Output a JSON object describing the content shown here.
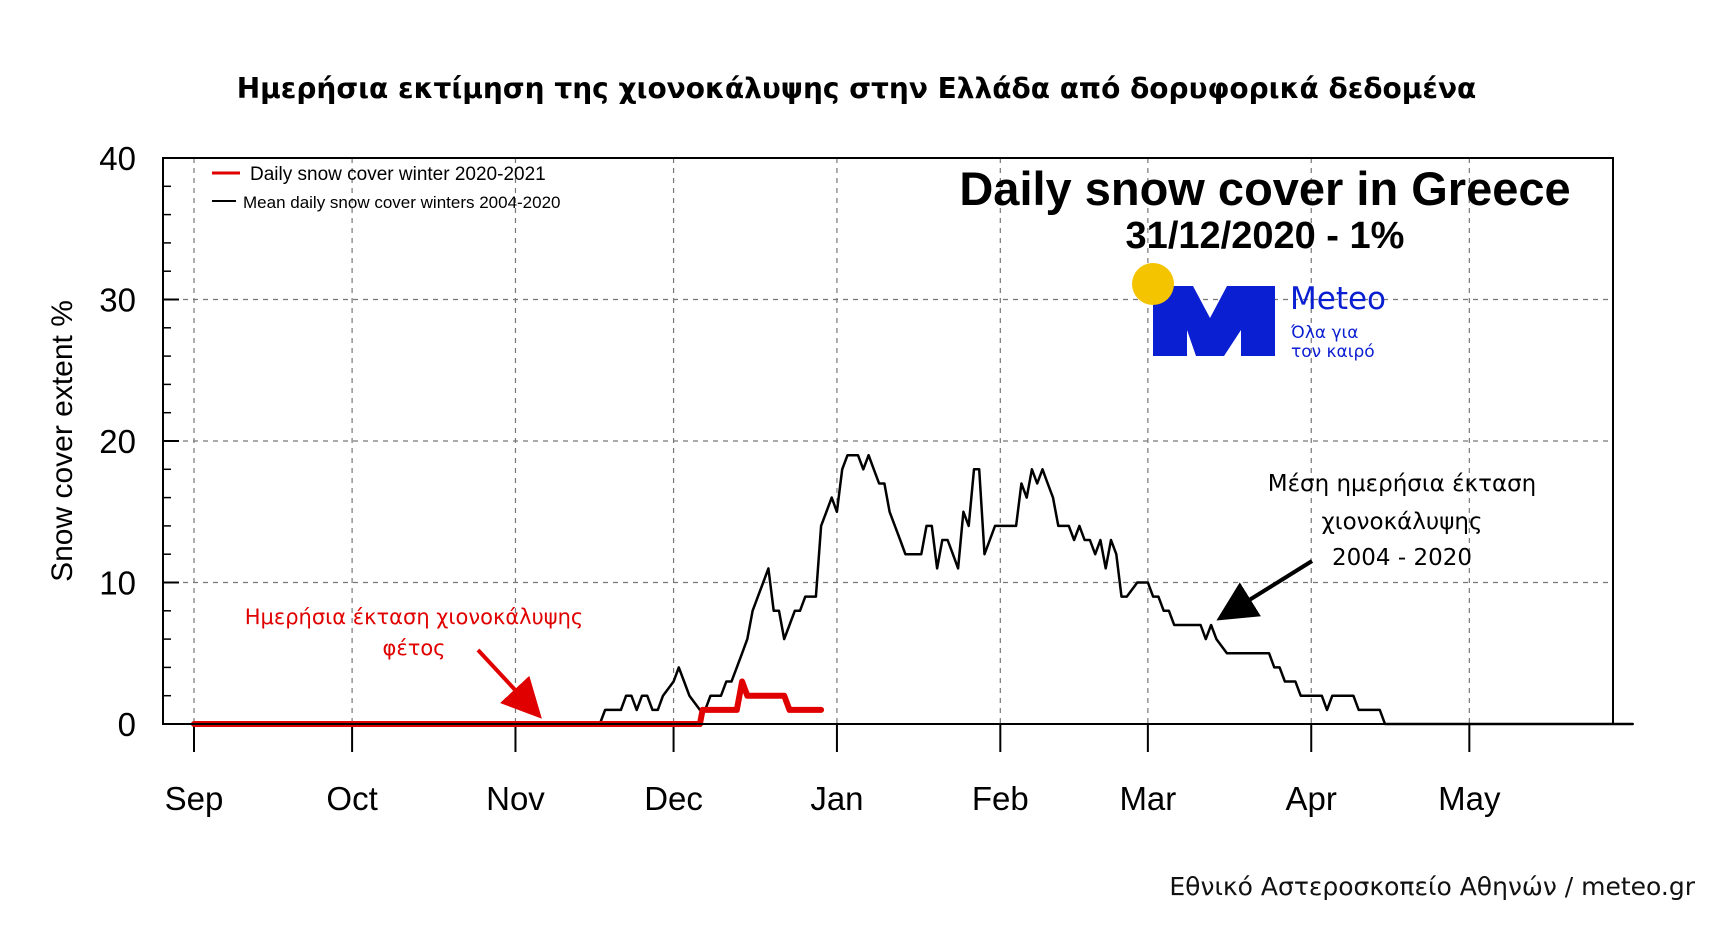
{
  "header": {
    "title": "Ημερήσια εκτίμηση της χιονοκάλυψης στην Ελλάδα από δορυφορικά δεδομένα"
  },
  "footer": {
    "credit": "Εθνικό Αστεροσκοπείο Αθηνών / meteo.gr"
  },
  "logo": {
    "brand": "Meteo",
    "tagline_line1": "Όλα για",
    "tagline_line2": "τον καιρό"
  },
  "colors": {
    "current": "#e00000",
    "mean": "#000000",
    "logo_blue": "#0a1ed2",
    "logo_sun": "#f5c400",
    "annotation_red": "#e00000"
  },
  "chart_data": {
    "type": "line",
    "title": "Daily snow cover in Greece",
    "subtitle": "31/12/2020 - 1%",
    "xlabel": "",
    "ylabel": "Snow cover extent %",
    "ylim": [
      0,
      40
    ],
    "xlim": [
      0,
      273
    ],
    "grid": true,
    "y_ticks": [
      "0",
      "10",
      "20",
      "30",
      "40"
    ],
    "y_tick_values": [
      0,
      10,
      20,
      30,
      40
    ],
    "month_labels": [
      "Sep",
      "Oct",
      "Nov",
      "Dec",
      "Jan",
      "Feb",
      "Mar",
      "Apr",
      "May"
    ],
    "month_days": [
      0,
      30,
      61,
      91,
      122,
      153,
      181,
      212,
      242
    ],
    "legend": {
      "position": "top-left",
      "current_label": "Daily snow cover winter 2020-2021",
      "mean_label": "Mean daily snow cover winters 2004-2020"
    },
    "annotations": {
      "current_line1": "Ημερήσια έκταση χιονοκάλυψης",
      "current_line2": "φέτος",
      "mean_line1": "Μέση ημερήσια έκταση",
      "mean_line2": "χιονοκάλυψης",
      "mean_line3": "2004 - 2020"
    },
    "series": [
      {
        "name": "Daily snow cover winter 2020-2021",
        "color": "#e00000",
        "x": [
          0,
          96,
          96.5,
          103,
          104,
          105,
          106,
          112,
          113,
          119
        ],
        "values": [
          0,
          0,
          1,
          1,
          3,
          2,
          2,
          2,
          1,
          1
        ]
      },
      {
        "name": "Mean daily snow cover winters 2004-2020",
        "color": "#000000",
        "x": [
          0,
          77,
          78,
          81,
          82,
          83,
          84,
          85,
          86,
          87,
          88,
          89,
          91,
          92,
          93,
          94,
          96,
          97,
          98,
          99,
          100,
          101,
          102,
          103,
          104,
          105,
          106,
          107,
          108,
          109,
          110,
          111,
          112,
          113,
          114,
          115,
          116,
          117,
          118,
          119,
          120,
          121,
          122,
          123,
          124,
          125,
          126,
          127,
          128,
          129,
          130,
          131,
          132,
          133,
          134,
          135,
          136,
          137,
          138,
          139,
          140,
          141,
          142,
          143,
          144,
          145,
          146,
          147,
          148,
          149,
          150,
          151,
          152,
          153,
          154,
          155,
          156,
          157,
          158,
          159,
          160,
          161,
          162,
          163,
          164,
          165,
          166,
          167,
          168,
          169,
          170,
          171,
          172,
          173,
          174,
          175,
          176,
          177,
          179,
          180,
          181,
          182,
          183,
          184,
          185,
          186,
          187,
          188,
          189,
          190,
          191,
          192,
          193,
          194,
          196,
          197,
          199,
          200,
          201,
          202,
          203,
          204,
          205,
          206,
          207,
          208,
          209,
          210,
          211,
          212,
          213,
          214,
          215,
          216,
          217,
          218,
          219,
          220,
          221,
          222,
          223,
          224,
          225,
          226,
          227,
          228,
          229,
          230,
          231,
          232,
          233,
          234,
          235,
          236,
          237,
          238,
          239,
          240,
          241,
          242,
          250,
          260,
          273
        ],
        "values": [
          0,
          0,
          1,
          1,
          2,
          2,
          1,
          2,
          2,
          1,
          1,
          2,
          3,
          4,
          3,
          2,
          1,
          1,
          2,
          2,
          2,
          3,
          3,
          4,
          5,
          6,
          8,
          9,
          10,
          11,
          8,
          8,
          6,
          7,
          8,
          8,
          9,
          9,
          9,
          14,
          15,
          16,
          15,
          18,
          19,
          19,
          19,
          18,
          19,
          18,
          17,
          17,
          15,
          14,
          13,
          12,
          12,
          12,
          12,
          14,
          14,
          11,
          13,
          13,
          12,
          11,
          15,
          14,
          18,
          18,
          12,
          13,
          14,
          14,
          14,
          14,
          14,
          17,
          16,
          18,
          17,
          18,
          17,
          16,
          14,
          14,
          14,
          13,
          14,
          13,
          13,
          12,
          13,
          11,
          13,
          12,
          9,
          9,
          10,
          10,
          10,
          9,
          9,
          8,
          8,
          7,
          7,
          7,
          7,
          7,
          7,
          6,
          7,
          6,
          5,
          5,
          5,
          5,
          5,
          5,
          5,
          5,
          4,
          4,
          3,
          3,
          3,
          2,
          2,
          2,
          2,
          2,
          1,
          2,
          2,
          2,
          2,
          2,
          1,
          1,
          1,
          1,
          1,
          0,
          0,
          0,
          0,
          0,
          0,
          0,
          0,
          0,
          0,
          0,
          0,
          0,
          0,
          0,
          0,
          0,
          0,
          0,
          0
        ]
      }
    ]
  }
}
